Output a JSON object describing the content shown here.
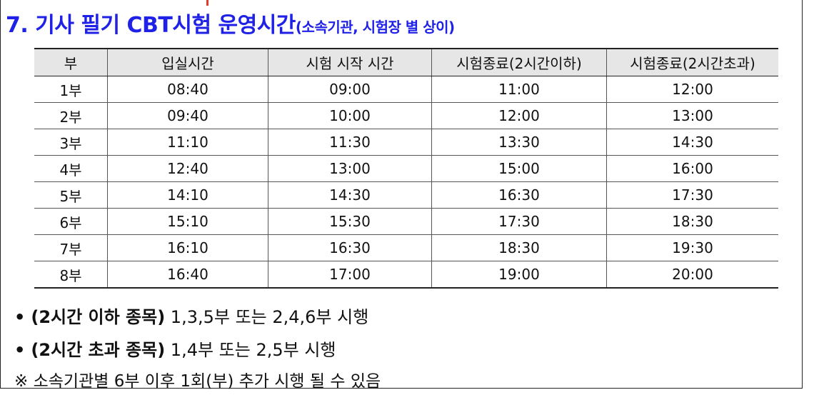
{
  "heading": {
    "main": "7. 기사 필기 CBT시험 운영시간",
    "sub": "(소속기관, 시험장 별 상이)"
  },
  "table": {
    "headers": [
      "부",
      "입실시간",
      "시험 시작 시간",
      "시험종료(2시간이하)",
      "시험종료(2시간초과)"
    ],
    "rows": [
      [
        "1부",
        "08:40",
        "09:00",
        "11:00",
        "12:00"
      ],
      [
        "2부",
        "09:40",
        "10:00",
        "12:00",
        "13:00"
      ],
      [
        "3부",
        "11:10",
        "11:30",
        "13:30",
        "14:30"
      ],
      [
        "4부",
        "12:40",
        "13:00",
        "15:00",
        "16:00"
      ],
      [
        "5부",
        "14:10",
        "14:30",
        "16:30",
        "17:30"
      ],
      [
        "6부",
        "15:10",
        "15:30",
        "17:30",
        "18:30"
      ],
      [
        "7부",
        "16:10",
        "16:30",
        "18:30",
        "19:30"
      ],
      [
        "8부",
        "16:40",
        "17:00",
        "19:00",
        "20:00"
      ]
    ]
  },
  "notes": {
    "bullet": "•",
    "item1_bold": "(2시간 이하 종목)",
    "item1_text": " 1,3,5부 또는 2,4,6부 시행",
    "item2_bold": "(2시간 초과 종목)",
    "item2_text": " 1,4부 또는 2,5부 시행",
    "remark": "※ 소속기관별 6부 이후 1회(부) 추가 시행 될 수 있음"
  },
  "colors": {
    "heading": "#1f22e6",
    "header_bg": "#e6e6e6",
    "mark": "#e53a2b"
  }
}
